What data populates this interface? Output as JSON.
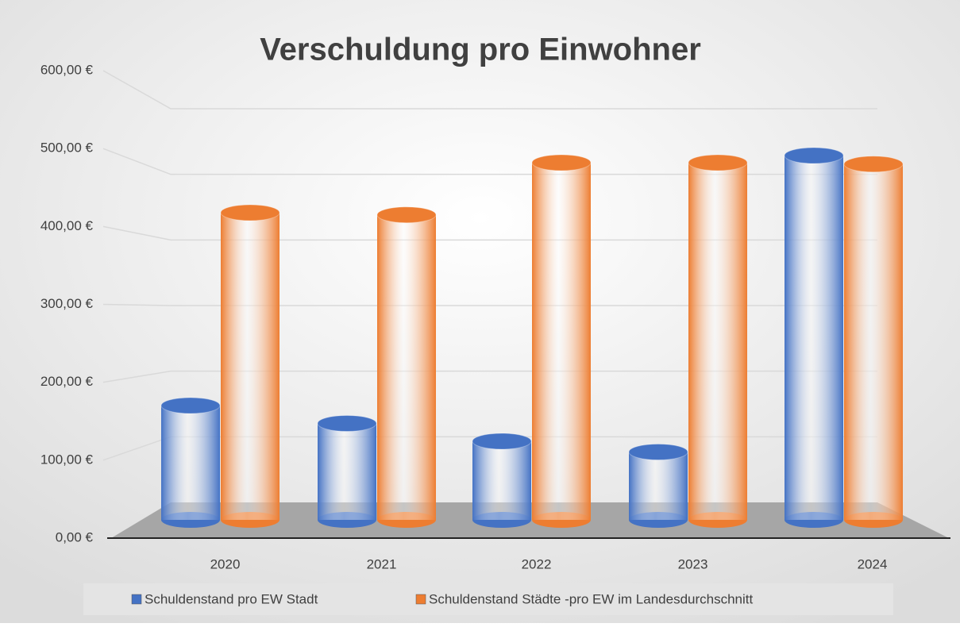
{
  "chart_data": {
    "type": "bar3d",
    "title": "Verschuldung pro Einwohner",
    "categories": [
      "2020",
      "2021",
      "2022",
      "2023",
      "2024"
    ],
    "series": [
      {
        "name": "Schuldenstand pro EW Stadt",
        "color": "#4472c4",
        "values": [
          160,
          135,
          110,
          95,
          510
        ]
      },
      {
        "name": "Schuldenstand Städte -pro EW im Landesdurchschnitt",
        "color": "#ed7d31",
        "values": [
          430,
          427,
          500,
          500,
          498
        ]
      }
    ],
    "ylim": [
      0,
      600
    ],
    "yticks": [
      {
        "value": 0,
        "label": "0,00 €"
      },
      {
        "value": 100,
        "label": "100,00 €"
      },
      {
        "value": 200,
        "label": "200,00 €"
      },
      {
        "value": 300,
        "label": "300,00 €"
      },
      {
        "value": 400,
        "label": "400,00 €"
      },
      {
        "value": 500,
        "label": "500,00 €"
      },
      {
        "value": 600,
        "label": "600,00 €"
      }
    ],
    "grid": true,
    "legend": "bottom"
  }
}
